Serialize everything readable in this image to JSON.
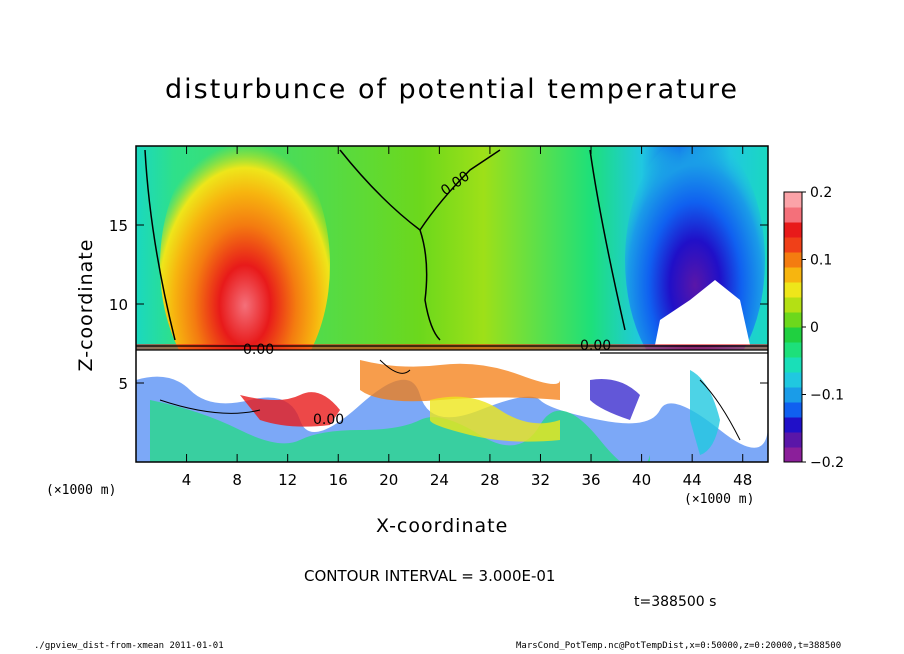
{
  "chart_data": {
    "type": "heatmap",
    "title": "disturbunce of potential temperature",
    "xlabel": "X-coordinate",
    "ylabel": "Z-coordinate",
    "x_unit": "(×1000 m)",
    "z_unit": "(×1000 m)",
    "xlim": [
      0,
      50
    ],
    "ylim": [
      0,
      20
    ],
    "x_ticks": [
      4,
      8,
      12,
      16,
      20,
      24,
      28,
      32,
      36,
      40,
      44,
      48
    ],
    "y_ticks": [
      5,
      10,
      15
    ],
    "colorbar": {
      "range": [
        -0.2,
        0.2
      ],
      "tick_values": [
        0.2,
        0.1,
        0,
        -0.1,
        -0.2
      ],
      "tick_labels": [
        "0.2",
        "0.1",
        "0",
        "−0.1",
        "−0.2"
      ],
      "colors": [
        "#8b1f9a",
        "#5a16a8",
        "#2010c8",
        "#1060f0",
        "#1a9ce8",
        "#20c8e0",
        "#19dfb8",
        "#1de07a",
        "#20d040",
        "#6cd81c",
        "#b4e014",
        "#eee61a",
        "#f7b50f",
        "#f47c10",
        "#f04018",
        "#e81a1a",
        "#f4707a",
        "#fba3a8"
      ]
    },
    "contour_labels": [
      "0.00",
      "0.00",
      "0.00",
      "0.00"
    ],
    "contour_interval": "CONTOUR INTERVAL = 3.000E-01",
    "time": "t=388500 s",
    "footer_left": "./gpview_dist-from-xmean  2011-01-01",
    "footer_right": "MarsCond_PotTemp.nc@PotTempDist,x=0:50000,z=0:20000,t=388500"
  }
}
